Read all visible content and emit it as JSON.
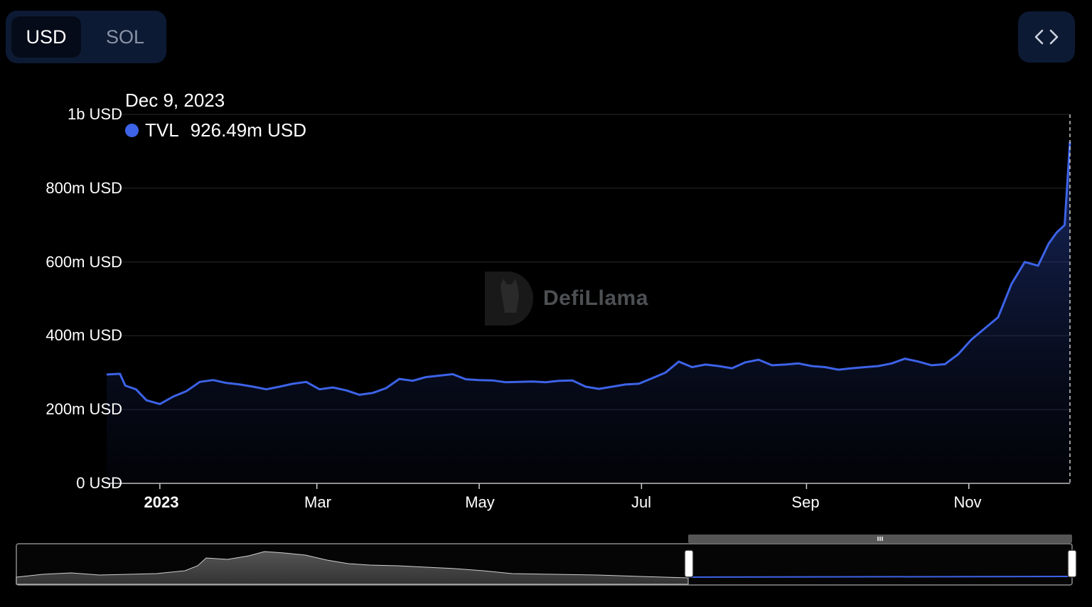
{
  "toggle": {
    "options": [
      "USD",
      "SOL"
    ],
    "selected": "USD"
  },
  "embed_button": {
    "icon": "code-brackets-icon"
  },
  "tooltip": {
    "date": "Dec 9, 2023",
    "series_label": "TVL",
    "value": "926.49m USD",
    "color": "#3d63e8"
  },
  "watermark": {
    "text": "DefiLlama"
  },
  "chart_data": {
    "type": "area",
    "ylim": [
      0,
      1000
    ],
    "unit": "m USD",
    "y_tick_labels": [
      "0 USD",
      "200m USD",
      "400m USD",
      "600m USD",
      "800m USD",
      "1b USD"
    ],
    "y_tick_values": [
      0,
      200,
      400,
      600,
      800,
      1000
    ],
    "x_tick_labels": [
      "2023",
      "Mar",
      "May",
      "Jul",
      "Sep",
      "Nov"
    ],
    "x_tick_dates": [
      "2023-01-01",
      "2023-03-01",
      "2023-05-01",
      "2023-07-01",
      "2023-09-01",
      "2023-11-01"
    ],
    "x_range": [
      "2022-12-12",
      "2023-12-09"
    ],
    "grid": true,
    "series": [
      {
        "name": "TVL",
        "color": "#3d63e8",
        "x": [
          "2022-12-12",
          "2022-12-17",
          "2022-12-19",
          "2022-12-23",
          "2022-12-27",
          "2023-01-01",
          "2023-01-06",
          "2023-01-11",
          "2023-01-16",
          "2023-01-21",
          "2023-01-26",
          "2023-01-31",
          "2023-02-05",
          "2023-02-10",
          "2023-02-15",
          "2023-02-20",
          "2023-02-25",
          "2023-03-02",
          "2023-03-07",
          "2023-03-12",
          "2023-03-17",
          "2023-03-22",
          "2023-03-27",
          "2023-04-01",
          "2023-04-06",
          "2023-04-11",
          "2023-04-16",
          "2023-04-21",
          "2023-04-26",
          "2023-05-01",
          "2023-05-06",
          "2023-05-11",
          "2023-05-16",
          "2023-05-21",
          "2023-05-26",
          "2023-05-31",
          "2023-06-05",
          "2023-06-10",
          "2023-06-15",
          "2023-06-20",
          "2023-06-25",
          "2023-06-30",
          "2023-07-05",
          "2023-07-10",
          "2023-07-15",
          "2023-07-20",
          "2023-07-25",
          "2023-07-30",
          "2023-08-04",
          "2023-08-09",
          "2023-08-14",
          "2023-08-19",
          "2023-08-24",
          "2023-08-29",
          "2023-09-03",
          "2023-09-08",
          "2023-09-13",
          "2023-09-18",
          "2023-09-23",
          "2023-09-28",
          "2023-10-03",
          "2023-10-08",
          "2023-10-13",
          "2023-10-18",
          "2023-10-23",
          "2023-10-28",
          "2023-11-02",
          "2023-11-07",
          "2023-11-12",
          "2023-11-17",
          "2023-11-22",
          "2023-11-27",
          "2023-12-01",
          "2023-12-04",
          "2023-12-07",
          "2023-12-09"
        ],
        "values": [
          295,
          297,
          265,
          255,
          225,
          215,
          235,
          250,
          275,
          280,
          272,
          268,
          262,
          255,
          262,
          270,
          275,
          255,
          260,
          252,
          240,
          245,
          258,
          283,
          278,
          288,
          292,
          296,
          282,
          280,
          279,
          274,
          275,
          276,
          274,
          278,
          279,
          262,
          256,
          262,
          268,
          270,
          285,
          300,
          330,
          315,
          322,
          318,
          312,
          328,
          335,
          320,
          322,
          325,
          318,
          315,
          308,
          312,
          315,
          318,
          325,
          338,
          330,
          320,
          323,
          350,
          390,
          420,
          450,
          540,
          600,
          590,
          650,
          680,
          700,
          926
        ]
      }
    ]
  },
  "navigator": {
    "handle_icon": "grip-icon"
  }
}
